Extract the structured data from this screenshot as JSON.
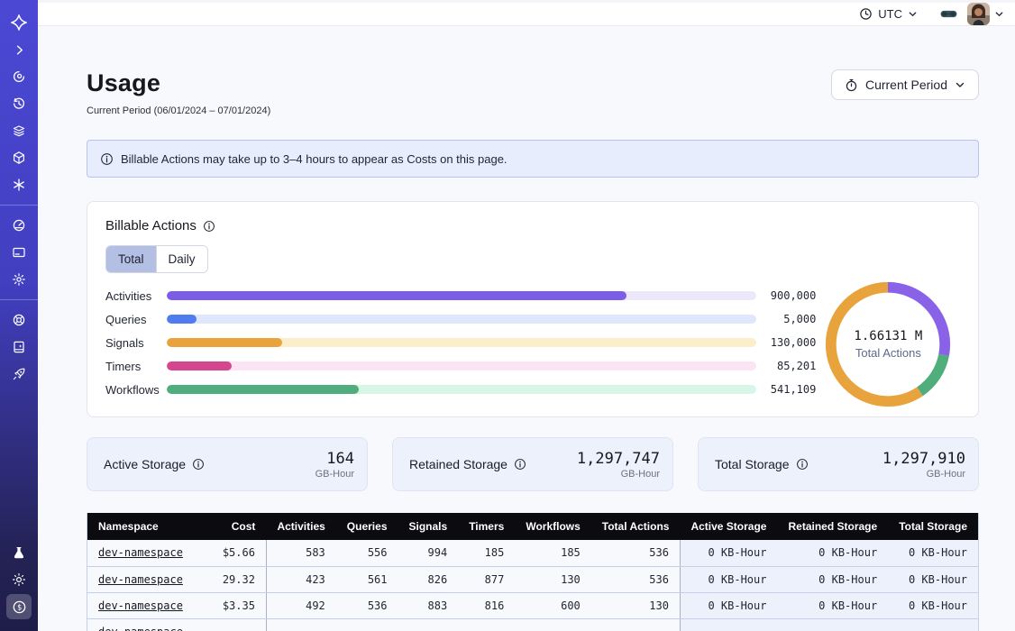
{
  "topbar": {
    "timezone_label": "UTC",
    "icons": [
      "clock-icon",
      "chevron-down-icon",
      "goggles-icon",
      "avatar",
      "chevron-down-icon"
    ]
  },
  "sidebar": {
    "icons": [
      "temporal-logo",
      "chevron-right",
      "namespaces",
      "schedules",
      "layers",
      "deployments",
      "asterisk",
      "usage-gauge",
      "billing-card",
      "settings-gear",
      "support-lifebuoy",
      "docs-book",
      "getting-started-rocket",
      "labs-flask",
      "theme-sun",
      "usage-dollar-active"
    ]
  },
  "page": {
    "title": "Usage",
    "subtitle": "Current Period (06/01/2024 – 07/01/2024)",
    "period_button_label": "Current Period"
  },
  "banner": {
    "text": "Billable Actions may take up to 3–4 hours to appear as Costs on this page."
  },
  "billable": {
    "title": "Billable Actions",
    "tabs": [
      "Total",
      "Daily"
    ],
    "active_tab": "Total"
  },
  "chart_data": {
    "type": "bar",
    "title": "Billable Actions",
    "categories": [
      "Activities",
      "Queries",
      "Signals",
      "Timers",
      "Workflows"
    ],
    "values": [
      900000,
      5000,
      130000,
      85201,
      541109
    ],
    "value_labels": [
      "900,000",
      "5,000",
      "130,000",
      "85,201",
      "541,109"
    ],
    "bar_colors": [
      "#7c5de8",
      "#4f7df0",
      "#e8a33d",
      "#d4468e",
      "#4fae7c"
    ],
    "track_colors": [
      "#ece7fb",
      "#dfe8fb",
      "#faeecb",
      "#fbe4f4",
      "#d9f5e6"
    ],
    "bar_pct": [
      78,
      5,
      19.5,
      11,
      32.5
    ],
    "legend_position": "none",
    "grid": false,
    "donut": {
      "type": "donut",
      "center_value": "1.66131 M",
      "center_label": "Total Actions",
      "segments": [
        {
          "name": "purple",
          "pct": 28,
          "color": "#8a62e8"
        },
        {
          "name": "green",
          "pct": 12.5,
          "color": "#4fae7c"
        },
        {
          "name": "orange",
          "pct": 59.5,
          "color": "#e8a33d"
        }
      ]
    }
  },
  "storage_cards": [
    {
      "label": "Active Storage",
      "value": "164",
      "unit": "GB-Hour"
    },
    {
      "label": "Retained Storage",
      "value": "1,297,747",
      "unit": "GB-Hour"
    },
    {
      "label": "Total Storage",
      "value": "1,297,910",
      "unit": "GB-Hour"
    }
  ],
  "table": {
    "columns": [
      "Namespace",
      "Cost",
      "Activities",
      "Queries",
      "Signals",
      "Timers",
      "Workflows",
      "Total Actions",
      "Active Storage",
      "Retained Storage",
      "Total Storage"
    ],
    "rows": [
      {
        "namespace": "dev-namespace",
        "cost": "$5.66",
        "activities": "583",
        "queries": "556",
        "signals": "994",
        "timers": "185",
        "workflows": "185",
        "total_actions": "536",
        "active_storage": "0 KB-Hour",
        "retained_storage": "0 KB-Hour",
        "total_storage": "0 KB-Hour"
      },
      {
        "namespace": "dev-namespace",
        "cost": "29.32",
        "activities": "423",
        "queries": "561",
        "signals": "826",
        "timers": "877",
        "workflows": "130",
        "total_actions": "536",
        "active_storage": "0 KB-Hour",
        "retained_storage": "0 KB-Hour",
        "total_storage": "0 KB-Hour"
      },
      {
        "namespace": "dev-namespace",
        "cost": "$3.35",
        "activities": "492",
        "queries": "536",
        "signals": "883",
        "timers": "816",
        "workflows": "600",
        "total_actions": "130",
        "active_storage": "0 KB-Hour",
        "retained_storage": "0 KB-Hour",
        "total_storage": "0 KB-Hour"
      },
      {
        "namespace": "dev-namespace",
        "cost": "",
        "activities": "",
        "queries": "",
        "signals": "",
        "timers": "",
        "workflows": "",
        "total_actions": "",
        "active_storage": "",
        "retained_storage": "",
        "total_storage": ""
      }
    ]
  }
}
